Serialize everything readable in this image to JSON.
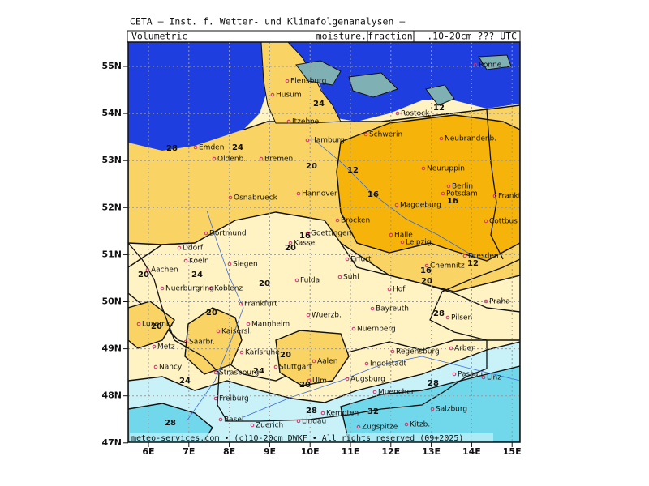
{
  "header": {
    "title": "CETA — Inst. f. Wetter- und Klimafolgenanalysen —",
    "left": "Volumetric",
    "field_prefix": "moisture.",
    "field_box": "fraction",
    "field_suffix": ".10-20cm ??? UTC"
  },
  "axes": {
    "lat_labels": [
      "55N",
      "54N",
      "53N",
      "52N",
      "51N",
      "50N",
      "49N",
      "48N",
      "47N"
    ],
    "lon_labels": [
      "6E",
      "7E",
      "8E",
      "9E",
      "10E",
      "11E",
      "12E",
      "13E",
      "14E",
      "15E"
    ]
  },
  "cities": [
    "Flensburg",
    "Husum",
    "Itzehoe",
    "Hamburg",
    "Rostock",
    "Schwerin",
    "Neubrandenb.",
    "Emden",
    "Oldenb.",
    "Bremen",
    "Neuruppin",
    "Berlin",
    "Potsdam",
    "Frankfurt/O.",
    "Hannover",
    "Osnabrueck",
    "Magdeburg",
    "Cottbus",
    "Brocken",
    "Dortmund",
    "Goettingen",
    "Halle",
    "Kassel",
    "Leipzig",
    "Dresden",
    "Ddorf",
    "Koeln",
    "Siegen",
    "Erfurt",
    "Chemnitz",
    "Aachen",
    "Fulda",
    "Suhl",
    "Koblenz",
    "Nuerburgring",
    "Hof",
    "Frankfurt",
    "Bayreuth",
    "Praha",
    "Wuerzb.",
    "Pilsen",
    "Mannheim",
    "Luxemb.",
    "Kaisersl.",
    "Nuernberg",
    "Saarbr.",
    "Metz",
    "Karlsruhe",
    "Regensburg",
    "Arber",
    "Aalen",
    "Nancy",
    "Ingolstadt",
    "Stuttgart",
    "Passau",
    "Strasbourg",
    "Ulm",
    "Augsburg",
    "Linz",
    "Muenchen",
    "Freiburg",
    "Salzburg",
    "Basel",
    "Kempten",
    "Zuerich",
    "Lindau",
    "Zugspitze",
    "Kitzb.",
    "Ronne"
  ],
  "contour_labels": [
    "24",
    "12",
    "28",
    "24",
    "20",
    "12",
    "16",
    "16",
    "16",
    "20",
    "12",
    "16",
    "20",
    "24",
    "20",
    "20",
    "20",
    "28",
    "20",
    "20",
    "24",
    "24",
    "20",
    "28",
    "28",
    "32",
    "28"
  ],
  "footer": "meteo-services.com • (c)10-20cm DWKF • All rights reserved (09+2025)"
}
